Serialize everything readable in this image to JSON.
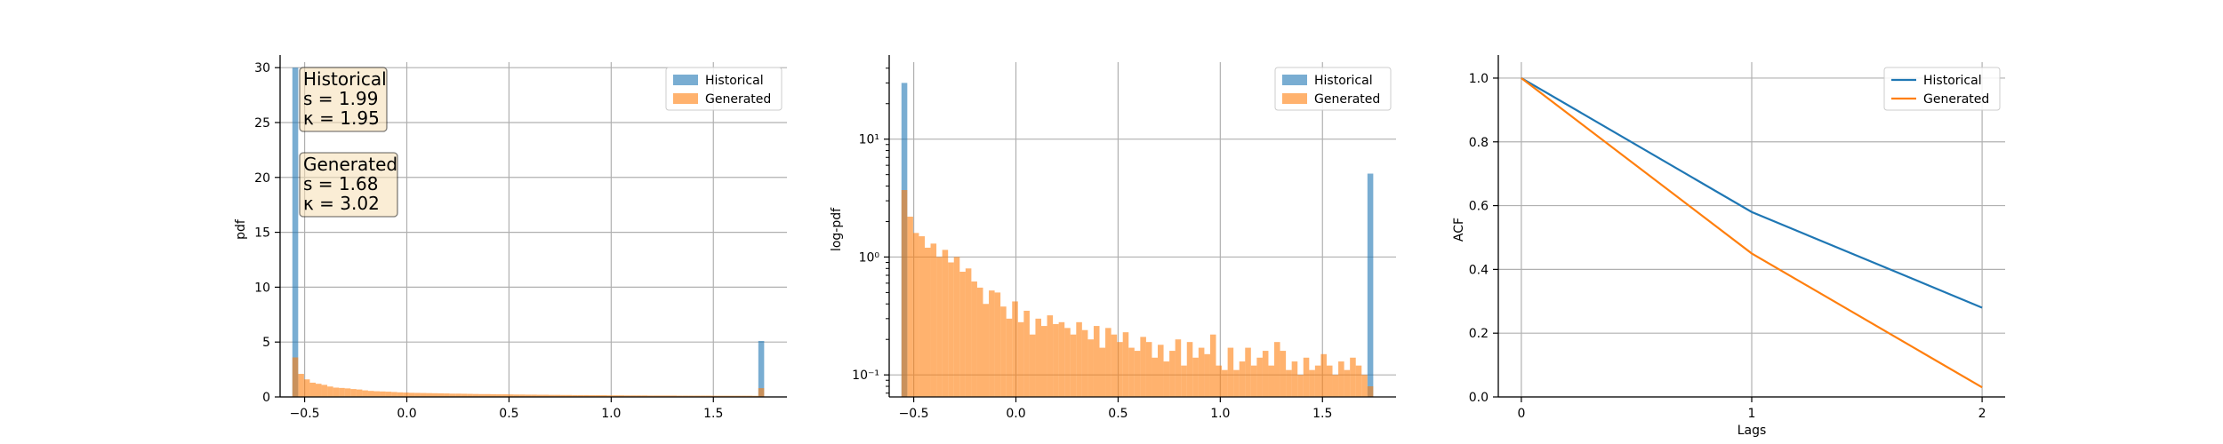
{
  "colors": {
    "historical": "#1f77b4",
    "generated": "#ff7f0e",
    "grid": "#b0b0b0",
    "stat_box_fill": "#f5deb3",
    "stat_box_edge": "#000000"
  },
  "chart_data": [
    {
      "type": "bar",
      "ylabel": "pdf",
      "xlabel": "",
      "xlim": [
        -0.62,
        1.86
      ],
      "ylim": [
        0,
        30.5
      ],
      "xticks": [
        -0.5,
        0.0,
        0.5,
        1.0,
        1.5
      ],
      "xtick_labels": [
        "−0.5",
        "0.0",
        "0.5",
        "1.0",
        "1.5"
      ],
      "yticks": [
        0,
        5,
        10,
        15,
        20,
        25,
        30
      ],
      "ytick_labels": [
        "0",
        "5",
        "10",
        "15",
        "20",
        "25",
        "30"
      ],
      "grid": true,
      "legend": {
        "placement": "top-right",
        "entries": [
          "Historical",
          "Generated"
        ]
      },
      "annotations": [
        {
          "lines": [
            "Historical",
            "s = 1.99",
            "κ = 1.95"
          ]
        },
        {
          "lines": [
            "Generated",
            "s = 1.68",
            "κ = 3.02"
          ]
        }
      ],
      "bin_start": -0.56,
      "bin_width": 0.0285,
      "series": [
        {
          "name": "Historical",
          "values": [
            30,
            0,
            0,
            0,
            0,
            0,
            0,
            0,
            0,
            0,
            0,
            0,
            0,
            0,
            0,
            0,
            0,
            0,
            0,
            0,
            0,
            0,
            0,
            0,
            0,
            0,
            0,
            0,
            0,
            0,
            0,
            0,
            0,
            0,
            0,
            0,
            0,
            0,
            0,
            0,
            0,
            0,
            0,
            0,
            0,
            0,
            0,
            0,
            0,
            0,
            0,
            0,
            0,
            0,
            0,
            0,
            0,
            0,
            0,
            0,
            0,
            0,
            0,
            0,
            0,
            0,
            0,
            0,
            0,
            0,
            0,
            0,
            0,
            0,
            0,
            0,
            0,
            0,
            0,
            0,
            5.1
          ]
        },
        {
          "name": "Generated",
          "values": [
            3.6,
            2.1,
            1.6,
            1.3,
            1.2,
            1.1,
            0.95,
            0.85,
            0.82,
            0.78,
            0.72,
            0.68,
            0.6,
            0.55,
            0.52,
            0.5,
            0.48,
            0.45,
            0.42,
            0.4,
            0.38,
            0.37,
            0.36,
            0.35,
            0.34,
            0.33,
            0.32,
            0.3,
            0.3,
            0.29,
            0.28,
            0.27,
            0.26,
            0.26,
            0.25,
            0.24,
            0.24,
            0.23,
            0.22,
            0.22,
            0.21,
            0.21,
            0.2,
            0.2,
            0.19,
            0.19,
            0.18,
            0.18,
            0.17,
            0.17,
            0.17,
            0.16,
            0.16,
            0.16,
            0.15,
            0.15,
            0.15,
            0.14,
            0.14,
            0.14,
            0.14,
            0.13,
            0.13,
            0.13,
            0.13,
            0.13,
            0.12,
            0.12,
            0.12,
            0.12,
            0.12,
            0.12,
            0.11,
            0.11,
            0.11,
            0.11,
            0.11,
            0.11,
            0.11,
            0.1,
            0.8
          ]
        }
      ]
    },
    {
      "type": "bar",
      "ylabel": "log-pdf",
      "xlabel": "",
      "scale_y": "log",
      "xlim": [
        -0.62,
        1.86
      ],
      "ylim": [
        0.065,
        45
      ],
      "xticks": [
        -0.5,
        0.0,
        0.5,
        1.0,
        1.5
      ],
      "xtick_labels": [
        "−0.5",
        "0.0",
        "0.5",
        "1.0",
        "1.5"
      ],
      "yticks": [
        0.1,
        1,
        10
      ],
      "ytick_labels": [
        "10⁻¹",
        "10⁰",
        "10¹"
      ],
      "grid": true,
      "legend": {
        "placement": "top-right",
        "entries": [
          "Historical",
          "Generated"
        ]
      },
      "bin_start": -0.56,
      "bin_width": 0.0285,
      "series": [
        {
          "name": "Historical",
          "values": [
            30,
            0,
            0,
            0,
            0,
            0,
            0,
            0,
            0,
            0,
            0,
            0,
            0,
            0,
            0,
            0,
            0,
            0,
            0,
            0,
            0,
            0,
            0,
            0,
            0,
            0,
            0,
            0,
            0,
            0,
            0,
            0,
            0,
            0,
            0,
            0,
            0,
            0,
            0,
            0,
            0,
            0,
            0,
            0,
            0,
            0,
            0,
            0,
            0,
            0,
            0,
            0,
            0,
            0,
            0,
            0,
            0,
            0,
            0,
            0,
            0,
            0,
            0,
            0,
            0,
            0,
            0,
            0,
            0,
            0,
            0,
            0,
            0,
            0,
            0,
            0,
            0,
            0,
            0,
            0,
            5.1
          ]
        },
        {
          "name": "Generated",
          "values": [
            3.7,
            2.2,
            1.6,
            1.5,
            1.2,
            1.3,
            1.0,
            1.15,
            0.9,
            1.0,
            0.75,
            0.8,
            0.62,
            0.55,
            0.4,
            0.52,
            0.5,
            0.38,
            0.3,
            0.42,
            0.28,
            0.35,
            0.22,
            0.3,
            0.26,
            0.32,
            0.27,
            0.28,
            0.25,
            0.22,
            0.28,
            0.24,
            0.2,
            0.26,
            0.17,
            0.25,
            0.22,
            0.19,
            0.23,
            0.17,
            0.16,
            0.21,
            0.19,
            0.14,
            0.18,
            0.13,
            0.16,
            0.2,
            0.12,
            0.19,
            0.14,
            0.17,
            0.15,
            0.22,
            0.12,
            0.11,
            0.17,
            0.11,
            0.13,
            0.17,
            0.12,
            0.14,
            0.16,
            0.12,
            0.19,
            0.16,
            0.11,
            0.13,
            0.1,
            0.14,
            0.11,
            0.12,
            0.15,
            0.12,
            0.1,
            0.13,
            0.11,
            0.14,
            0.12,
            0.1,
            0.08
          ]
        }
      ]
    },
    {
      "type": "line",
      "ylabel": "ACF",
      "xlabel": "Lags",
      "xlim": [
        -0.1,
        2.1
      ],
      "ylim": [
        0,
        1.05
      ],
      "xticks": [
        0,
        1,
        2
      ],
      "xtick_labels": [
        "0",
        "1",
        "2"
      ],
      "yticks": [
        0.0,
        0.2,
        0.4,
        0.6,
        0.8,
        1.0
      ],
      "ytick_labels": [
        "0.0",
        "0.2",
        "0.4",
        "0.6",
        "0.8",
        "1.0"
      ],
      "grid": true,
      "legend": {
        "placement": "top-right",
        "entries": [
          "Historical",
          "Generated"
        ]
      },
      "x": [
        0,
        1,
        2
      ],
      "series": [
        {
          "name": "Historical",
          "values": [
            1.0,
            0.58,
            0.28
          ]
        },
        {
          "name": "Generated",
          "values": [
            1.0,
            0.45,
            0.03
          ]
        }
      ]
    }
  ]
}
